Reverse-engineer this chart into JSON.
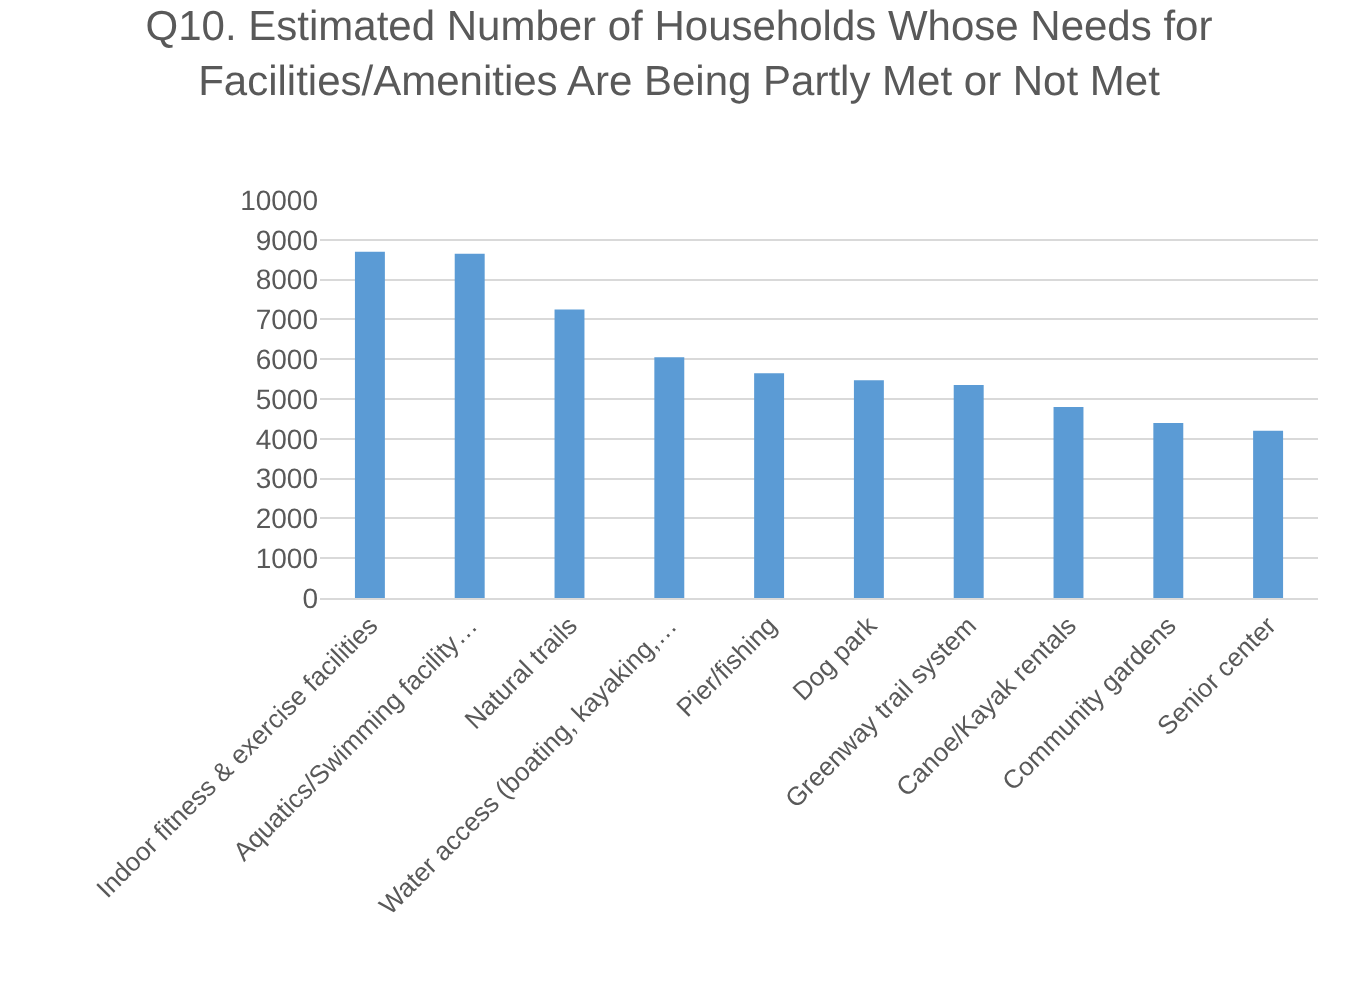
{
  "chart_data": {
    "type": "bar",
    "title": "Q10. Estimated Number of Households Whose Needs for Facilities/Amenities Are Being Partly Met or Not Met",
    "categories": [
      "Indoor fitness & exercise facilities",
      "Aquatics/Swimming facility…",
      "Natural trails",
      "Water access (boating, kayaking,…",
      "Pier/fishing",
      "Dog park",
      "Greenway trail system",
      "Canoe/Kayak rentals",
      "Community gardens",
      "Senior center"
    ],
    "values": [
      8700,
      8650,
      7250,
      6050,
      5650,
      5470,
      5350,
      4800,
      4400,
      4200
    ],
    "color": "#5b9bd5",
    "ylim": [
      0,
      10000
    ],
    "yticks": [
      0,
      1000,
      2000,
      3000,
      4000,
      5000,
      6000,
      7000,
      8000,
      9000,
      10000
    ],
    "grid": "y"
  }
}
